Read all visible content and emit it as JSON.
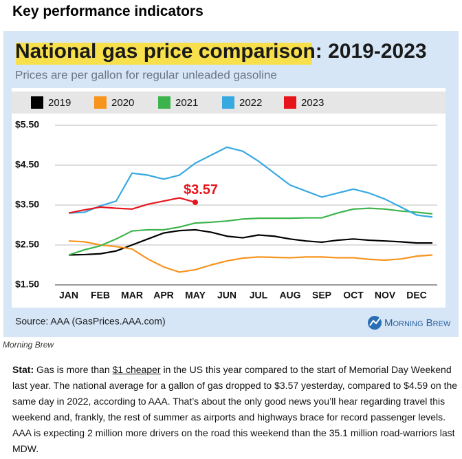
{
  "header": {
    "title": "Key performance indicators"
  },
  "chart_data": {
    "type": "line",
    "title": "National gas price comparison: 2019-2023",
    "subtitle": "Prices are per gallon for regular unleaded gasoline",
    "categories": [
      "JAN",
      null,
      "FEB",
      null,
      "MAR",
      null,
      "APR",
      null,
      "MAY",
      null,
      "JUN",
      null,
      "JUL",
      null,
      "AUG",
      null,
      "SEP",
      null,
      "OCT",
      null,
      "NOV",
      null,
      "DEC",
      null
    ],
    "ylim": [
      1.5,
      5.5
    ],
    "yticks": [
      {
        "value": 1.5,
        "label": "$1.50"
      },
      {
        "value": 2.5,
        "label": "$2.50"
      },
      {
        "value": 3.5,
        "label": "$3.50"
      },
      {
        "value": 4.5,
        "label": "$4.50"
      },
      {
        "value": 5.5,
        "label": "$5.50"
      }
    ],
    "grid": true,
    "legend": "top",
    "series": [
      {
        "name": "2019",
        "color": "#000000",
        "values": [
          2.25,
          2.26,
          2.28,
          2.35,
          2.5,
          2.65,
          2.8,
          2.86,
          2.88,
          2.82,
          2.72,
          2.68,
          2.75,
          2.72,
          2.65,
          2.6,
          2.57,
          2.62,
          2.65,
          2.62,
          2.6,
          2.58,
          2.55,
          2.55
        ]
      },
      {
        "name": "2020",
        "color": "#f7941d",
        "values": [
          2.6,
          2.58,
          2.5,
          2.46,
          2.4,
          2.15,
          1.95,
          1.82,
          1.88,
          2.0,
          2.1,
          2.17,
          2.2,
          2.19,
          2.18,
          2.2,
          2.2,
          2.18,
          2.18,
          2.14,
          2.12,
          2.15,
          2.22,
          2.25
        ]
      },
      {
        "name": "2021",
        "color": "#3cb44b",
        "values": [
          2.25,
          2.38,
          2.48,
          2.65,
          2.85,
          2.88,
          2.88,
          2.95,
          3.05,
          3.07,
          3.1,
          3.15,
          3.17,
          3.17,
          3.17,
          3.18,
          3.18,
          3.3,
          3.4,
          3.42,
          3.4,
          3.35,
          3.32,
          3.28
        ]
      },
      {
        "name": "2022",
        "color": "#36a9e1",
        "values": [
          3.3,
          3.32,
          3.48,
          3.6,
          4.3,
          4.25,
          4.15,
          4.25,
          4.55,
          4.75,
          4.95,
          4.85,
          4.6,
          4.3,
          4.0,
          3.85,
          3.7,
          3.8,
          3.9,
          3.8,
          3.65,
          3.45,
          3.25,
          3.2
        ]
      },
      {
        "name": "2023",
        "color": "#e8141c",
        "values": [
          3.3,
          3.38,
          3.45,
          3.42,
          3.4,
          3.52,
          3.6,
          3.68,
          3.57,
          null,
          null,
          null,
          null,
          null,
          null,
          null,
          null,
          null,
          null,
          null,
          null,
          null,
          null,
          null
        ],
        "value_labels": [
          null,
          null,
          null,
          null,
          null,
          null,
          null,
          null,
          "$3.57",
          null,
          null,
          null,
          null,
          null,
          null,
          null,
          null,
          null,
          null,
          null,
          null,
          null,
          null,
          null
        ]
      }
    ],
    "source": "Source: AAA (GasPrices.AAA.com)",
    "brand": "Morning Brew"
  },
  "caption": "Morning Brew",
  "stat": {
    "label": "Stat:",
    "before": "Gas is more than",
    "link": "$1 cheaper",
    "after": "in the US this year compared to the start of Memorial Day Weekend last year. The national average for a gallon of gas dropped to $3.57 yesterday, compared to $4.59 on the same day in 2022, according to AAA. That’s about the only good news you’ll hear regarding travel this weekend and, frankly, the rest of summer as airports and highways brace for record passenger levels. AAA is expecting 2 million more drivers on the road this weekend than the 35.1 million road-warriors last MDW."
  }
}
